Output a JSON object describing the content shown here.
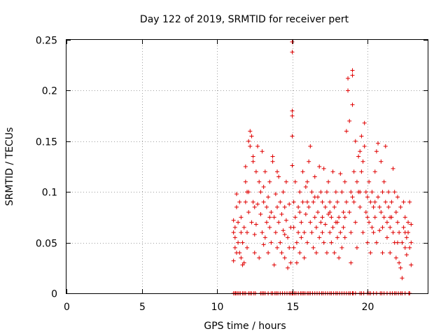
{
  "chart_data": {
    "type": "scatter",
    "title": "Day 122 of 2019, SRMTID for receiver pert",
    "xlabel": "GPS time / hours",
    "ylabel": "SRMTID / TECUs",
    "xlim": [
      0,
      24
    ],
    "ylim": [
      0,
      0.25
    ],
    "x_ticks": [
      0,
      5,
      10,
      15,
      20
    ],
    "x_tick_labels": [
      "0",
      "5",
      "10",
      "15",
      "20"
    ],
    "y_ticks": [
      0,
      0.05,
      0.1,
      0.15,
      0.2,
      0.25
    ],
    "y_tick_labels": [
      "0",
      "0.05",
      "0.1",
      "0.15",
      "0.2",
      "0.25"
    ],
    "grid": true,
    "marker": "+",
    "series_color": "#e00000",
    "series": [
      {
        "name": "SRMTID",
        "points": [
          [
            11.1,
            0.032
          ],
          [
            11.1,
            0.06
          ],
          [
            11.1,
            0.072
          ],
          [
            11.2,
            0.045
          ],
          [
            11.2,
            0.065
          ],
          [
            11.2,
            0.055
          ],
          [
            11.3,
            0.085
          ],
          [
            11.3,
            0.098
          ],
          [
            11.4,
            0.05
          ],
          [
            11.4,
            0.07
          ],
          [
            11.5,
            0.04
          ],
          [
            11.5,
            0.09
          ],
          [
            11.6,
            0.06
          ],
          [
            11.6,
            0.075
          ],
          [
            11.6,
            0.035
          ],
          [
            11.7,
            0.028
          ],
          [
            11.7,
            0.05
          ],
          [
            11.8,
            0.03
          ],
          [
            11.8,
            0.065
          ],
          [
            11.9,
            0.11
          ],
          [
            11.9,
            0.09
          ],
          [
            11.9,
            0.125
          ],
          [
            12.0,
            0.06
          ],
          [
            12.0,
            0.045
          ],
          [
            12.1,
            0.1
          ],
          [
            12.1,
            0.08
          ],
          [
            12.1,
            0.15
          ],
          [
            12.2,
            0.16
          ],
          [
            12.2,
            0.145
          ],
          [
            12.3,
            0.155
          ],
          [
            12.3,
            0.07
          ],
          [
            12.4,
            0.13
          ],
          [
            12.4,
            0.135
          ],
          [
            12.4,
            0.09
          ],
          [
            12.5,
            0.04
          ],
          [
            12.5,
            0.058
          ],
          [
            12.6,
            0.068
          ],
          [
            12.6,
            0.12
          ],
          [
            12.7,
            0.088
          ],
          [
            12.7,
            0.145
          ],
          [
            12.8,
            0.11
          ],
          [
            12.8,
            0.035
          ],
          [
            12.9,
            0.078
          ],
          [
            12.9,
            0.1
          ],
          [
            13.0,
            0.06
          ],
          [
            13.0,
            0.14
          ],
          [
            13.1,
            0.048
          ],
          [
            13.1,
            0.09
          ],
          [
            13.2,
            0.055
          ],
          [
            13.2,
            0.12
          ],
          [
            13.3,
            0.085
          ],
          [
            13.3,
            0.07
          ],
          [
            13.4,
            0.095
          ],
          [
            13.4,
            0.04
          ],
          [
            13.5,
            0.065
          ],
          [
            13.5,
            0.11
          ],
          [
            13.6,
            0.05
          ],
          [
            13.6,
            0.08
          ],
          [
            13.7,
            0.135
          ],
          [
            13.7,
            0.13
          ],
          [
            13.8,
            0.075
          ],
          [
            13.8,
            0.028
          ],
          [
            13.9,
            0.06
          ],
          [
            13.9,
            0.098
          ],
          [
            14.0,
            0.085
          ],
          [
            14.0,
            0.045
          ],
          [
            14.1,
            0.115
          ],
          [
            14.1,
            0.07
          ],
          [
            14.2,
            0.05
          ],
          [
            14.2,
            0.09
          ],
          [
            14.3,
            0.04
          ],
          [
            14.3,
            0.078
          ],
          [
            14.4,
            0.062
          ],
          [
            14.4,
            0.1
          ],
          [
            14.5,
            0.035
          ],
          [
            14.5,
            0.058
          ],
          [
            14.6,
            0.11
          ],
          [
            14.6,
            0.072
          ],
          [
            14.7,
            0.025
          ],
          [
            14.7,
            0.055
          ],
          [
            14.8,
            0.088
          ],
          [
            14.8,
            0.045
          ],
          [
            14.9,
            0.065
          ],
          [
            14.9,
            0.03
          ],
          [
            15.0,
            0.248
          ],
          [
            15.0,
            0.238
          ],
          [
            15.0,
            0.18
          ],
          [
            15.0,
            0.175
          ],
          [
            15.0,
            0.155
          ],
          [
            15.0,
            0.126
          ],
          [
            15.1,
            0.09
          ],
          [
            15.1,
            0.065
          ],
          [
            15.1,
            0.045
          ],
          [
            15.2,
            0.11
          ],
          [
            15.2,
            0.075
          ],
          [
            15.3,
            0.05
          ],
          [
            15.3,
            0.03
          ],
          [
            15.4,
            0.085
          ],
          [
            15.4,
            0.06
          ],
          [
            15.5,
            0.04
          ],
          [
            15.5,
            0.1
          ],
          [
            15.6,
            0.07
          ],
          [
            15.6,
            0.055
          ],
          [
            15.7,
            0.12
          ],
          [
            15.7,
            0.09
          ],
          [
            15.8,
            0.06
          ],
          [
            15.8,
            0.035
          ],
          [
            15.9,
            0.105
          ],
          [
            15.9,
            0.078
          ],
          [
            16.0,
            0.11
          ],
          [
            16.0,
            0.05
          ],
          [
            16.1,
            0.13
          ],
          [
            16.1,
            0.085
          ],
          [
            16.2,
            0.145
          ],
          [
            16.2,
            0.07
          ],
          [
            16.3,
            0.1
          ],
          [
            16.3,
            0.06
          ],
          [
            16.4,
            0.09
          ],
          [
            16.4,
            0.045
          ],
          [
            16.5,
            0.075
          ],
          [
            16.5,
            0.115
          ],
          [
            16.6,
            0.065
          ],
          [
            16.6,
            0.04
          ],
          [
            16.7,
            0.095
          ],
          [
            16.7,
            0.08
          ],
          [
            16.8,
            0.125
          ],
          [
            16.8,
            0.055
          ],
          [
            16.9,
            0.07
          ],
          [
            16.9,
            0.1
          ],
          [
            17.0,
            0.06
          ],
          [
            17.0,
            0.09
          ],
          [
            17.1,
            0.123
          ],
          [
            17.1,
            0.05
          ],
          [
            17.2,
            0.085
          ],
          [
            17.2,
            0.068
          ],
          [
            17.3,
            0.1
          ],
          [
            17.3,
            0.04
          ],
          [
            17.4,
            0.078
          ],
          [
            17.4,
            0.11
          ],
          [
            17.5,
            0.06
          ],
          [
            17.5,
            0.09
          ],
          [
            17.6,
            0.05
          ],
          [
            17.6,
            0.075
          ],
          [
            17.7,
            0.12
          ],
          [
            17.7,
            0.065
          ],
          [
            17.8,
            0.085
          ],
          [
            17.8,
            0.04
          ],
          [
            17.9,
            0.07
          ],
          [
            17.9,
            0.1
          ],
          [
            18.0,
            0.055
          ],
          [
            18.0,
            0.09
          ],
          [
            18.1,
            0.075
          ],
          [
            18.1,
            0.035
          ],
          [
            18.2,
            0.118
          ],
          [
            18.2,
            0.06
          ],
          [
            18.3,
            0.1
          ],
          [
            18.3,
            0.045
          ],
          [
            18.4,
            0.08
          ],
          [
            18.4,
            0.065
          ],
          [
            18.5,
            0.11
          ],
          [
            18.5,
            0.055
          ],
          [
            18.6,
            0.09
          ],
          [
            18.6,
            0.16
          ],
          [
            18.7,
            0.2
          ],
          [
            18.7,
            0.212
          ],
          [
            18.8,
            0.17
          ],
          [
            18.8,
            0.08
          ],
          [
            18.9,
            0.1
          ],
          [
            18.9,
            0.06
          ],
          [
            18.9,
            0.03
          ],
          [
            19.0,
            0.22
          ],
          [
            19.0,
            0.215
          ],
          [
            19.0,
            0.186
          ],
          [
            19.1,
            0.12
          ],
          [
            19.1,
            0.09
          ],
          [
            19.2,
            0.15
          ],
          [
            19.2,
            0.07
          ],
          [
            19.3,
            0.11
          ],
          [
            19.3,
            0.045
          ],
          [
            19.4,
            0.1
          ],
          [
            19.4,
            0.135
          ],
          [
            19.5,
            0.14
          ],
          [
            19.5,
            0.085
          ],
          [
            19.6,
            0.155
          ],
          [
            19.6,
            0.12
          ],
          [
            19.7,
            0.13
          ],
          [
            19.7,
            0.06
          ],
          [
            19.8,
            0.168
          ],
          [
            19.8,
            0.145
          ],
          [
            19.9,
            0.1
          ],
          [
            19.9,
            0.08
          ],
          [
            20.0,
            0.095
          ],
          [
            20.0,
            0.05
          ],
          [
            20.1,
            0.11
          ],
          [
            20.1,
            0.07
          ],
          [
            20.2,
            0.09
          ],
          [
            20.2,
            0.04
          ],
          [
            20.3,
            0.065
          ],
          [
            20.3,
            0.1
          ],
          [
            20.4,
            0.085
          ],
          [
            20.4,
            0.06
          ],
          [
            20.5,
            0.12
          ],
          [
            20.5,
            0.075
          ],
          [
            20.6,
            0.14
          ],
          [
            20.6,
            0.05
          ],
          [
            20.7,
            0.148
          ],
          [
            20.7,
            0.095
          ],
          [
            20.8,
            0.085
          ],
          [
            20.8,
            0.062
          ],
          [
            20.9,
            0.13
          ],
          [
            20.9,
            0.08
          ],
          [
            21.0,
            0.1
          ],
          [
            21.0,
            0.04
          ],
          [
            21.1,
            0.11
          ],
          [
            21.1,
            0.075
          ],
          [
            21.2,
            0.145
          ],
          [
            21.2,
            0.09
          ],
          [
            21.3,
            0.07
          ],
          [
            21.3,
            0.055
          ],
          [
            21.4,
            0.1
          ],
          [
            21.4,
            0.085
          ],
          [
            21.5,
            0.065
          ],
          [
            21.5,
            0.04
          ],
          [
            21.6,
            0.09
          ],
          [
            21.6,
            0.075
          ],
          [
            21.7,
            0.123
          ],
          [
            21.7,
            0.06
          ],
          [
            21.8,
            0.1
          ],
          [
            21.8,
            0.05
          ],
          [
            21.9,
            0.08
          ],
          [
            21.9,
            0.035
          ],
          [
            22.0,
            0.07
          ],
          [
            22.0,
            0.095
          ],
          [
            22.1,
            0.06
          ],
          [
            22.1,
            0.03
          ],
          [
            22.2,
            0.025
          ],
          [
            22.2,
            0.085
          ],
          [
            22.3,
            0.05
          ],
          [
            22.3,
            0.015
          ],
          [
            22.4,
            0.065
          ],
          [
            22.4,
            0.09
          ],
          [
            22.5,
            0.045
          ],
          [
            22.5,
            0.075
          ],
          [
            22.6,
            0.055
          ],
          [
            22.6,
            0.038
          ],
          [
            22.7,
            0.07
          ],
          [
            22.7,
            0.06
          ],
          [
            22.8,
            0.045
          ],
          [
            22.8,
            0.09
          ],
          [
            22.9,
            0.05
          ],
          [
            22.9,
            0.028
          ],
          [
            22.9,
            0.068
          ],
          [
            11.3,
            0.04
          ],
          [
            12.0,
            0.1
          ],
          [
            13.1,
            0.105
          ],
          [
            14.0,
            0.12
          ],
          [
            15.5,
            0.08
          ],
          [
            16.0,
            0.09
          ],
          [
            17.0,
            0.075
          ],
          [
            18.0,
            0.07
          ],
          [
            19.0,
            0.095
          ],
          [
            20.0,
            0.075
          ],
          [
            21.0,
            0.065
          ],
          [
            22.0,
            0.05
          ],
          [
            12.5,
            0.085
          ],
          [
            13.5,
            0.075
          ],
          [
            14.5,
            0.085
          ],
          [
            16.5,
            0.095
          ],
          [
            17.5,
            0.08
          ],
          [
            18.5,
            0.075
          ],
          [
            19.5,
            0.1
          ],
          [
            20.5,
            0.09
          ],
          [
            21.5,
            0.075
          ],
          [
            22.5,
            0.06
          ]
        ],
        "zero_marks_x": [
          11.1,
          11.2,
          11.25,
          11.35,
          11.45,
          11.55,
          11.7,
          11.8,
          11.9,
          12.1,
          12.2,
          12.3,
          12.45,
          12.55,
          12.9,
          13.0,
          13.1,
          13.2,
          13.4,
          13.6,
          13.7,
          13.85,
          13.95,
          14.05,
          14.2,
          14.35,
          14.5,
          14.65,
          14.8,
          14.9,
          15.0,
          15.05,
          15.15,
          15.25,
          15.4,
          15.55,
          15.65,
          15.75,
          15.85,
          16.0,
          16.1,
          16.2,
          16.35,
          16.5,
          16.65,
          16.8,
          16.95,
          17.05,
          17.2,
          17.35,
          17.5,
          17.6,
          17.75,
          17.9,
          18.0,
          18.15,
          18.3,
          18.45,
          18.6,
          18.75,
          18.85,
          19.0,
          19.05,
          19.2,
          19.5,
          19.6,
          19.75,
          20.0,
          20.1,
          20.2,
          20.4,
          20.6,
          20.85,
          20.95,
          21.1,
          21.3,
          21.5,
          21.65,
          21.8,
          21.9,
          22.05,
          22.2,
          22.3,
          22.5,
          22.75,
          22.8
        ]
      }
    ]
  }
}
